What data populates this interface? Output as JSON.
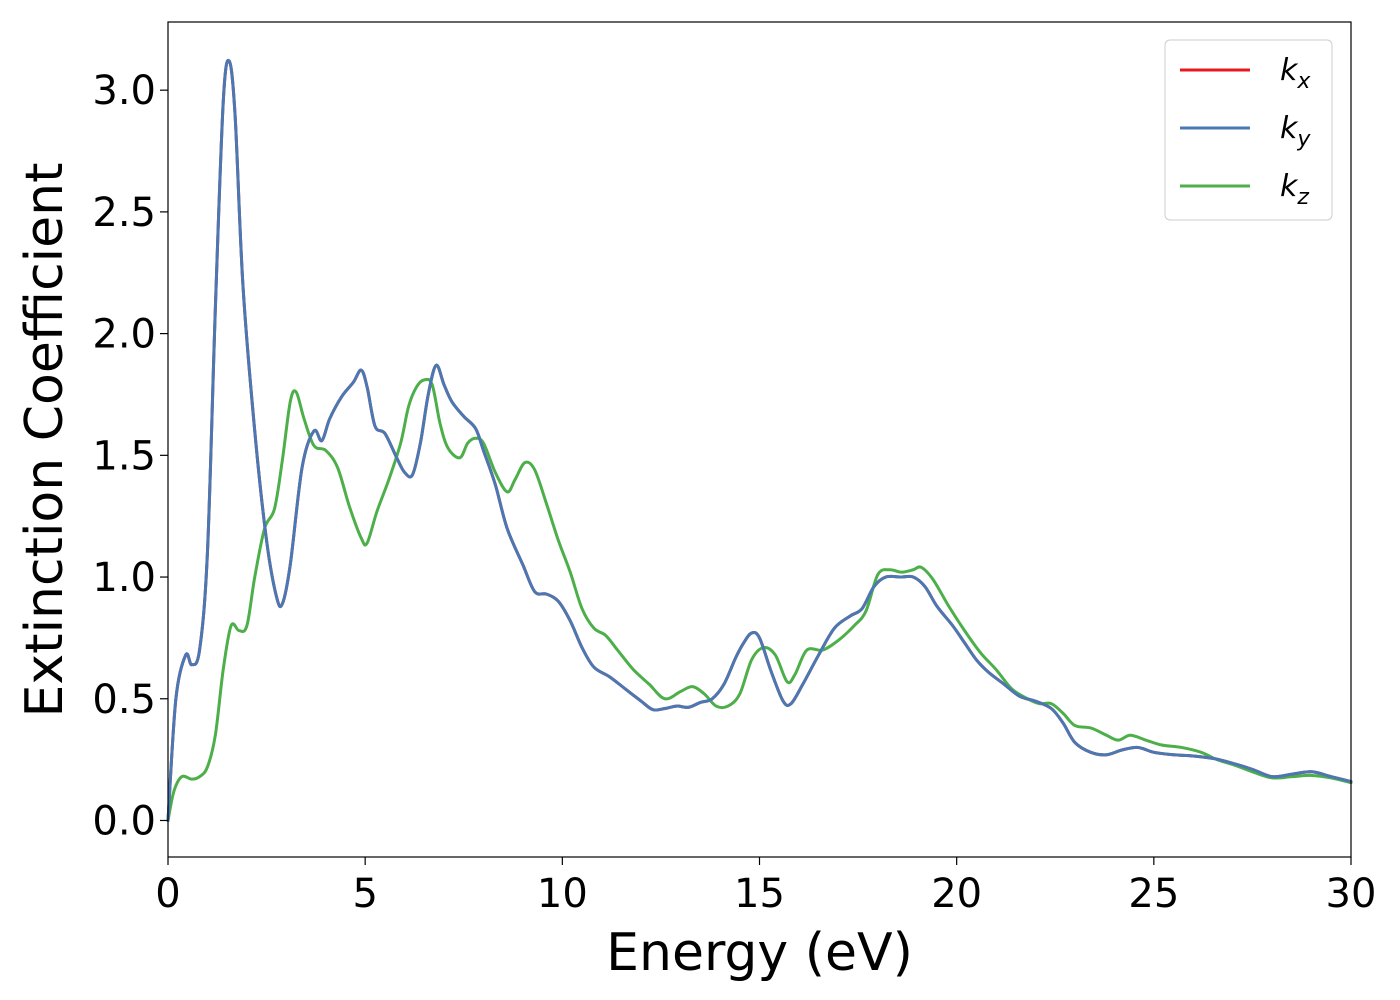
{
  "chart_data": {
    "type": "line",
    "xlabel": "Energy (eV)",
    "ylabel": "Extinction Coefficient",
    "xlim": [
      0,
      30
    ],
    "ylim": [
      -0.15,
      3.28
    ],
    "xticks": [
      0,
      5,
      10,
      15,
      20,
      25,
      30
    ],
    "xtick_labels": [
      "0",
      "5",
      "10",
      "15",
      "20",
      "25",
      "30"
    ],
    "yticks": [
      0.0,
      0.5,
      1.0,
      1.5,
      2.0,
      2.5,
      3.0
    ],
    "ytick_labels": [
      "0.0",
      "0.5",
      "1.0",
      "1.5",
      "2.0",
      "2.5",
      "3.0"
    ],
    "grid": false,
    "legend_position": "top-right",
    "series": [
      {
        "name": "k",
        "subscript": "x",
        "color": "#e41a1c",
        "x": [
          0,
          0.2,
          0.45,
          0.6,
          0.8,
          1.0,
          1.2,
          1.4,
          1.55,
          1.7,
          1.9,
          2.2,
          2.5,
          2.75,
          2.9,
          3.1,
          3.4,
          3.7,
          3.9,
          4.1,
          4.4,
          4.7,
          4.9,
          5.05,
          5.25,
          5.5,
          5.8,
          6.0,
          6.2,
          6.4,
          6.6,
          6.8,
          7.0,
          7.2,
          7.5,
          7.8,
          8.0,
          8.3,
          8.6,
          9.0,
          9.3,
          9.6,
          9.9,
          10.2,
          10.5,
          10.8,
          11.2,
          11.6,
          12.0,
          12.3,
          12.6,
          12.9,
          13.2,
          13.5,
          13.8,
          14.1,
          14.4,
          14.6,
          14.8,
          15.0,
          15.3,
          15.6,
          15.8,
          16.1,
          16.5,
          16.9,
          17.3,
          17.6,
          17.9,
          18.2,
          18.6,
          18.9,
          19.2,
          19.5,
          19.9,
          20.2,
          20.5,
          20.8,
          21.2,
          21.6,
          22.0,
          22.4,
          22.7,
          23.0,
          23.4,
          23.8,
          24.2,
          24.6,
          25.0,
          25.5,
          26.0,
          26.5,
          27.0,
          27.5,
          28.0,
          28.5,
          29.0,
          29.5,
          30.0
        ],
        "y": [
          0.0,
          0.5,
          0.68,
          0.64,
          0.7,
          1.1,
          2.1,
          2.95,
          3.12,
          2.9,
          2.2,
          1.6,
          1.15,
          0.92,
          0.89,
          1.05,
          1.45,
          1.6,
          1.56,
          1.65,
          1.74,
          1.8,
          1.85,
          1.78,
          1.62,
          1.59,
          1.49,
          1.43,
          1.42,
          1.55,
          1.75,
          1.87,
          1.79,
          1.72,
          1.66,
          1.61,
          1.52,
          1.38,
          1.2,
          1.05,
          0.94,
          0.93,
          0.9,
          0.82,
          0.71,
          0.63,
          0.59,
          0.54,
          0.49,
          0.455,
          0.46,
          0.47,
          0.465,
          0.485,
          0.5,
          0.56,
          0.67,
          0.73,
          0.77,
          0.75,
          0.61,
          0.49,
          0.48,
          0.56,
          0.68,
          0.79,
          0.84,
          0.87,
          0.96,
          1.0,
          1.0,
          1.0,
          0.96,
          0.88,
          0.8,
          0.73,
          0.66,
          0.61,
          0.56,
          0.51,
          0.49,
          0.46,
          0.4,
          0.32,
          0.28,
          0.27,
          0.29,
          0.3,
          0.28,
          0.27,
          0.265,
          0.255,
          0.235,
          0.21,
          0.18,
          0.19,
          0.2,
          0.18,
          0.16
        ]
      },
      {
        "name": "k",
        "subscript": "y",
        "color": "#4a78b3",
        "x": [
          0,
          0.2,
          0.45,
          0.6,
          0.8,
          1.0,
          1.2,
          1.4,
          1.55,
          1.7,
          1.9,
          2.2,
          2.5,
          2.75,
          2.9,
          3.1,
          3.4,
          3.7,
          3.9,
          4.1,
          4.4,
          4.7,
          4.9,
          5.05,
          5.25,
          5.5,
          5.8,
          6.0,
          6.2,
          6.4,
          6.6,
          6.8,
          7.0,
          7.2,
          7.5,
          7.8,
          8.0,
          8.3,
          8.6,
          9.0,
          9.3,
          9.6,
          9.9,
          10.2,
          10.5,
          10.8,
          11.2,
          11.6,
          12.0,
          12.3,
          12.6,
          12.9,
          13.2,
          13.5,
          13.8,
          14.1,
          14.4,
          14.6,
          14.8,
          15.0,
          15.3,
          15.6,
          15.8,
          16.1,
          16.5,
          16.9,
          17.3,
          17.6,
          17.9,
          18.2,
          18.6,
          18.9,
          19.2,
          19.5,
          19.9,
          20.2,
          20.5,
          20.8,
          21.2,
          21.6,
          22.0,
          22.4,
          22.7,
          23.0,
          23.4,
          23.8,
          24.2,
          24.6,
          25.0,
          25.5,
          26.0,
          26.5,
          27.0,
          27.5,
          28.0,
          28.5,
          29.0,
          29.5,
          30.0
        ],
        "y": [
          0.0,
          0.5,
          0.68,
          0.64,
          0.7,
          1.1,
          2.1,
          2.95,
          3.12,
          2.9,
          2.2,
          1.6,
          1.15,
          0.92,
          0.89,
          1.05,
          1.45,
          1.6,
          1.56,
          1.65,
          1.74,
          1.8,
          1.85,
          1.78,
          1.62,
          1.59,
          1.49,
          1.43,
          1.42,
          1.55,
          1.75,
          1.87,
          1.79,
          1.72,
          1.66,
          1.61,
          1.52,
          1.38,
          1.2,
          1.05,
          0.94,
          0.93,
          0.9,
          0.82,
          0.71,
          0.63,
          0.59,
          0.54,
          0.49,
          0.455,
          0.46,
          0.47,
          0.465,
          0.485,
          0.5,
          0.56,
          0.67,
          0.73,
          0.77,
          0.75,
          0.61,
          0.49,
          0.48,
          0.56,
          0.68,
          0.79,
          0.84,
          0.87,
          0.96,
          1.0,
          1.0,
          1.0,
          0.96,
          0.88,
          0.8,
          0.73,
          0.66,
          0.61,
          0.56,
          0.51,
          0.49,
          0.46,
          0.4,
          0.32,
          0.28,
          0.27,
          0.29,
          0.3,
          0.28,
          0.27,
          0.265,
          0.255,
          0.235,
          0.21,
          0.18,
          0.19,
          0.2,
          0.18,
          0.16
        ]
      },
      {
        "name": "k",
        "subscript": "z",
        "color": "#4daf4a",
        "x": [
          0,
          0.15,
          0.35,
          0.6,
          0.8,
          1.0,
          1.2,
          1.4,
          1.6,
          1.8,
          2.0,
          2.2,
          2.45,
          2.7,
          2.9,
          3.1,
          3.25,
          3.45,
          3.7,
          4.0,
          4.3,
          4.6,
          4.9,
          5.05,
          5.3,
          5.6,
          5.9,
          6.1,
          6.3,
          6.5,
          6.7,
          6.9,
          7.1,
          7.4,
          7.6,
          7.8,
          8.0,
          8.3,
          8.6,
          8.8,
          9.05,
          9.3,
          9.6,
          9.9,
          10.2,
          10.5,
          10.8,
          11.1,
          11.4,
          11.8,
          12.2,
          12.6,
          13.0,
          13.3,
          13.6,
          13.9,
          14.2,
          14.5,
          14.8,
          15.1,
          15.4,
          15.7,
          15.9,
          16.2,
          16.6,
          17.0,
          17.4,
          17.7,
          18.0,
          18.3,
          18.6,
          18.9,
          19.1,
          19.4,
          19.8,
          20.2,
          20.6,
          21.0,
          21.4,
          21.8,
          22.1,
          22.4,
          22.7,
          23.0,
          23.4,
          23.8,
          24.1,
          24.4,
          24.8,
          25.2,
          25.7,
          26.2,
          26.6,
          27.0,
          27.5,
          28.0,
          28.5,
          29.0,
          29.5,
          30.0
        ],
        "y": [
          0.0,
          0.12,
          0.18,
          0.17,
          0.18,
          0.22,
          0.35,
          0.62,
          0.8,
          0.78,
          0.8,
          1.0,
          1.2,
          1.28,
          1.48,
          1.72,
          1.76,
          1.65,
          1.54,
          1.52,
          1.45,
          1.29,
          1.16,
          1.14,
          1.27,
          1.4,
          1.55,
          1.7,
          1.78,
          1.81,
          1.79,
          1.63,
          1.53,
          1.49,
          1.55,
          1.57,
          1.55,
          1.43,
          1.35,
          1.4,
          1.47,
          1.44,
          1.3,
          1.15,
          1.02,
          0.87,
          0.79,
          0.76,
          0.7,
          0.62,
          0.56,
          0.5,
          0.53,
          0.55,
          0.52,
          0.47,
          0.47,
          0.52,
          0.66,
          0.71,
          0.68,
          0.57,
          0.6,
          0.7,
          0.7,
          0.74,
          0.8,
          0.86,
          1.01,
          1.03,
          1.02,
          1.03,
          1.04,
          0.99,
          0.88,
          0.78,
          0.69,
          0.62,
          0.54,
          0.5,
          0.48,
          0.48,
          0.44,
          0.39,
          0.38,
          0.35,
          0.33,
          0.35,
          0.33,
          0.31,
          0.3,
          0.28,
          0.25,
          0.23,
          0.2,
          0.175,
          0.18,
          0.185,
          0.175,
          0.155
        ]
      }
    ]
  }
}
